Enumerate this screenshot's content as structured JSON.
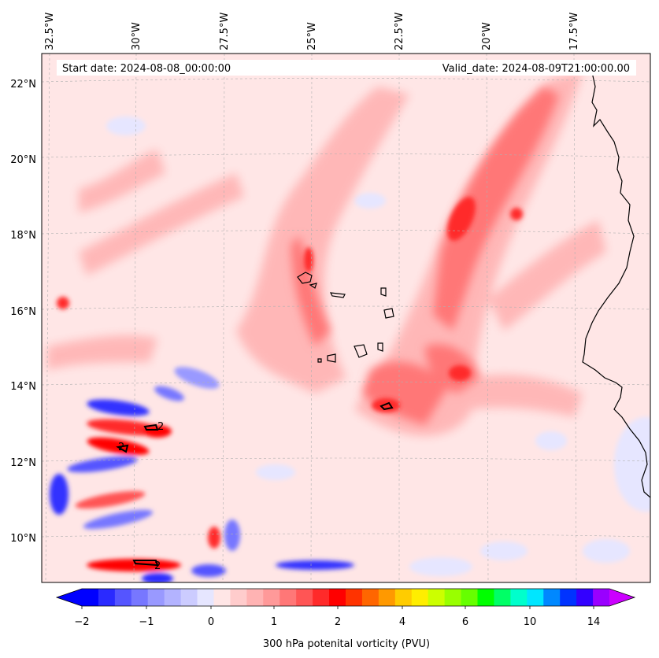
{
  "map": {
    "start_label": "Start date: 2024-08-08_00:00:00",
    "valid_label": "Valid_date: 2024-08-09T21:00:00.00",
    "lon_labels": [
      "32.5°W",
      "30°W",
      "27.5°W",
      "25°W",
      "22.5°W",
      "20°W",
      "17.5°W"
    ],
    "lat_labels": [
      "22°N",
      "20°N",
      "18°N",
      "16°N",
      "14°N",
      "12°N",
      "10°N"
    ],
    "contour_label": "2",
    "colors": {
      "background_pv": "#ffe6e6",
      "coast": "#000000",
      "grid": "#b0b0b0"
    }
  },
  "colorbar": {
    "title": "300 hPa potenital vorticity (PVU)",
    "tick_labels": [
      "−2",
      "−1",
      "0",
      "1",
      "2",
      "4",
      "6",
      "10",
      "14"
    ],
    "colors": [
      "#0000ff",
      "#2a2aff",
      "#5555ff",
      "#7777ff",
      "#9999ff",
      "#b3b3ff",
      "#ccccff",
      "#e6e6ff",
      "#ffe6e6",
      "#ffcccc",
      "#ffb3b3",
      "#ff9999",
      "#ff7777",
      "#ff5555",
      "#ff2a2a",
      "#ff0000",
      "#ff3300",
      "#ff6600",
      "#ff9900",
      "#ffcc00",
      "#ffee00",
      "#ccff00",
      "#99ff00",
      "#66ff00",
      "#00ff00",
      "#00ff66",
      "#00ffcc",
      "#00e6ff",
      "#0088ff",
      "#0033ff",
      "#3300ff",
      "#9900ff"
    ],
    "under_color": "#0000ff",
    "over_color": "#cc00ff"
  }
}
